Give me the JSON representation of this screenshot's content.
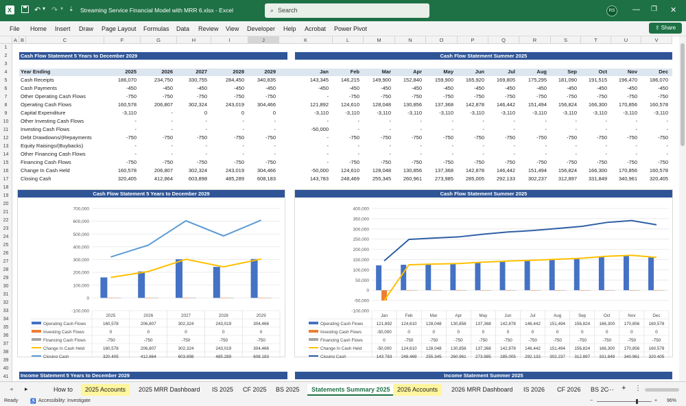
{
  "titlebar": {
    "title": "Streaming Service Financial Model with MRR 6.xlsx  -  Excel",
    "search_placeholder": "Search",
    "user_initials": "RS"
  },
  "menu": [
    "File",
    "Home",
    "Insert",
    "Draw",
    "Page Layout",
    "Formulas",
    "Data",
    "Review",
    "View",
    "Developer",
    "Help",
    "Acrobat",
    "Power Pivot"
  ],
  "share_label": "Share",
  "columns": [
    "A",
    "B",
    "C",
    "F",
    "G",
    "H",
    "I",
    "J",
    "K",
    "L",
    "M",
    "N",
    "O",
    "P",
    "Q",
    "R",
    "S",
    "T",
    "U",
    "V"
  ],
  "rows": [
    "1",
    "2",
    "3",
    "4",
    "5",
    "6",
    "7",
    "8",
    "9",
    "10",
    "11",
    "12",
    "13",
    "14",
    "15",
    "16",
    "17",
    "18",
    "19",
    "20",
    "21",
    "22",
    "23",
    "24",
    "25",
    "26",
    "27",
    "28",
    "29",
    "30",
    "31",
    "32",
    "33",
    "34",
    "35",
    "36",
    "37",
    "38",
    "39",
    "40",
    "41",
    "42"
  ],
  "section1": {
    "left_title": "Cash Flow Statement 5 Years to December 2029",
    "right_title": "Cash Flow Statement Summer 2025",
    "header_label": "Year Ending",
    "years": [
      "2025",
      "2026",
      "2027",
      "2028",
      "2029"
    ],
    "months": [
      "Jan",
      "Feb",
      "Mar",
      "Apr",
      "May",
      "Jun",
      "Jul",
      "Aug",
      "Sep",
      "Oct",
      "Nov",
      "Dec"
    ],
    "rows": [
      {
        "label": "Cash Receipts",
        "years": [
          "186,070",
          "234,750",
          "330,755",
          "284,450",
          "340,835"
        ],
        "months": [
          "143,345",
          "146,215",
          "149,900",
          "152,840",
          "159,900",
          "165,920",
          "169,805",
          "175,295",
          "181,090",
          "191,515",
          "196,470",
          "186,070"
        ]
      },
      {
        "label": "Cash Payments",
        "years": [
          "-450",
          "-450",
          "-450",
          "-450",
          "-450"
        ],
        "months": [
          "-450",
          "-450",
          "-450",
          "-450",
          "-450",
          "-450",
          "-450",
          "-450",
          "-450",
          "-450",
          "-450",
          "-450"
        ]
      },
      {
        "label": "Other Operating Cash Flows",
        "years": [
          "-750",
          "-750",
          "-750",
          "-750",
          "-750"
        ],
        "months": [
          "-",
          "-750",
          "-750",
          "-750",
          "-750",
          "-750",
          "-750",
          "-750",
          "-750",
          "-750",
          "-750",
          "-750"
        ]
      },
      {
        "label": "Operating Cash Flows",
        "years": [
          "160,578",
          "206,807",
          "302,324",
          "243,019",
          "304,466"
        ],
        "months": [
          "121,892",
          "124,610",
          "128,048",
          "130,856",
          "137,368",
          "142,878",
          "146,442",
          "151,494",
          "156,824",
          "166,300",
          "170,856",
          "160,578"
        ]
      },
      {
        "label": "Capital Expenditure",
        "years": [
          "-3,110",
          "-",
          "0",
          "0",
          "0"
        ],
        "months": [
          "-3,110",
          "-3,110",
          "-3,110",
          "-3,110",
          "-3,110",
          "-3,110",
          "-3,110",
          "-3,110",
          "-3,110",
          "-3,110",
          "-3,110",
          "-3,110"
        ]
      },
      {
        "label": "Other Investing Cash Flows",
        "years": [
          "-",
          "-",
          "-",
          "-",
          "-"
        ],
        "months": [
          "-",
          "-",
          "-",
          "-",
          "-",
          "-",
          "-",
          "-",
          "-",
          "-",
          "-",
          "-"
        ]
      },
      {
        "label": "Investing Cash Flows",
        "years": [
          "-",
          "-",
          "-",
          "-",
          "-"
        ],
        "months": [
          "-50,000",
          "-",
          "-",
          "-",
          "-",
          "-",
          "-",
          "-",
          "-",
          "-",
          "-",
          "-"
        ]
      },
      {
        "label": "Debt Drawdowns/(Repayments",
        "years": [
          "-750",
          "-750",
          "-750",
          "-750",
          "-750"
        ],
        "months": [
          "-",
          "-750",
          "-750",
          "-750",
          "-750",
          "-750",
          "-750",
          "-750",
          "-750",
          "-750",
          "-750",
          "-750"
        ]
      },
      {
        "label": "Equity Raisings/(Buybacks)",
        "years": [
          "-",
          "-",
          "-",
          "-",
          "-"
        ],
        "months": [
          "-",
          "-",
          "-",
          "-",
          "-",
          "-",
          "-",
          "-",
          "-",
          "-",
          "-",
          "-"
        ]
      },
      {
        "label": "Other Financing Cash Flows",
        "years": [
          "-",
          "-",
          "-",
          "-",
          "-"
        ],
        "months": [
          "-",
          "-",
          "-",
          "-",
          "-",
          "-",
          "-",
          "-",
          "-",
          "-",
          "-",
          "-"
        ]
      },
      {
        "label": "Financing Cash Flows",
        "years": [
          "-750",
          "-750",
          "-750",
          "-750",
          "-750"
        ],
        "months": [
          "-",
          "-750",
          "-750",
          "-750",
          "-750",
          "-750",
          "-750",
          "-750",
          "-750",
          "-750",
          "-750",
          "-750"
        ]
      },
      {
        "label": "Change In Cash Held",
        "years": [
          "160,578",
          "206,807",
          "302,324",
          "243,019",
          "304,466"
        ],
        "months": [
          "-50,000",
          "124,610",
          "128,048",
          "130,856",
          "137,368",
          "142,878",
          "146,442",
          "151,494",
          "156,824",
          "166,300",
          "170,856",
          "160,578"
        ]
      },
      {
        "label": "Closing Cash",
        "years": [
          "320,405",
          "412,864",
          "603,898",
          "485,289",
          "608,183"
        ],
        "months": [
          "143,783",
          "248,469",
          "255,345",
          "260,961",
          "273,985",
          "285,005",
          "292,133",
          "302,237",
          "312,897",
          "331,849",
          "340,961",
          "320,405"
        ]
      }
    ]
  },
  "chart_data": [
    {
      "type": "bar",
      "title": "Cash Flow Statement 5 Years to December 2029",
      "categories": [
        "2025",
        "2026",
        "2027",
        "2028",
        "2029"
      ],
      "ylim": [
        -100000,
        700000
      ],
      "yticks": [
        "700,000",
        "600,000",
        "500,000",
        "400,000",
        "300,000",
        "200,000",
        "100,000",
        "0",
        "-100,000"
      ],
      "series": [
        {
          "name": "Operating Cash Flows",
          "kind": "bar",
          "color": "#4472c4",
          "values": [
            160578,
            206807,
            302324,
            243019,
            304466
          ],
          "labels": [
            "160,578",
            "206,807",
            "302,324",
            "243,019",
            "304,466"
          ]
        },
        {
          "name": "Investing Cash Flows",
          "kind": "bar",
          "color": "#ed7d31",
          "values": [
            0,
            0,
            0,
            0,
            0
          ],
          "labels": [
            "0",
            "0",
            "0",
            "0",
            "0"
          ]
        },
        {
          "name": "Financing Cash Flows",
          "kind": "bar",
          "color": "#a5a5a5",
          "values": [
            -750,
            -750,
            -750,
            -750,
            -750
          ],
          "labels": [
            "-750",
            "-750",
            "-750",
            "-750",
            "-750"
          ]
        },
        {
          "name": "Change In Cash Held",
          "kind": "line",
          "color": "#ffc000",
          "values": [
            160578,
            206807,
            302324,
            243019,
            304466
          ],
          "labels": [
            "160,578",
            "206,807",
            "302,324",
            "243,019",
            "304,466"
          ]
        },
        {
          "name": "Closing Cash",
          "kind": "line",
          "color": "#5b9bd5",
          "values": [
            320405,
            412864,
            603898,
            485289,
            608183
          ],
          "labels": [
            "320,405",
            "412,864",
            "603,898",
            "485,289",
            "608,183"
          ]
        }
      ]
    },
    {
      "type": "bar",
      "title": "Cash Flow Statement Summer 2025",
      "categories": [
        "Jan",
        "Feb",
        "Mar",
        "Apr",
        "May",
        "Jun",
        "Jul",
        "Aug",
        "Sep",
        "Oct",
        "Nov",
        "Dec"
      ],
      "ylim": [
        -100000,
        400000
      ],
      "yticks": [
        "400,000",
        "350,000",
        "300,000",
        "250,000",
        "200,000",
        "150,000",
        "100,000",
        "50,000",
        "0",
        "-50,000",
        "-100,000"
      ],
      "series": [
        {
          "name": "Operating Cash Flows",
          "kind": "bar",
          "color": "#4472c4",
          "values": [
            121892,
            124610,
            128048,
            130856,
            137368,
            142878,
            146442,
            151494,
            156824,
            166300,
            170856,
            160578
          ],
          "labels": [
            "121,892",
            "124,610",
            "128,048",
            "130,856",
            "137,368",
            "142,878",
            "146,442",
            "151,494",
            "156,824",
            "166,300",
            "170,856",
            "160,578"
          ]
        },
        {
          "name": "Investing Cash Flows",
          "kind": "bar",
          "color": "#ed7d31",
          "values": [
            -50000,
            0,
            0,
            0,
            0,
            0,
            0,
            0,
            0,
            0,
            0,
            0
          ],
          "labels": [
            "-50,000",
            "0",
            "0",
            "0",
            "0",
            "0",
            "0",
            "0",
            "0",
            "0",
            "0",
            "0"
          ]
        },
        {
          "name": "Financing Cash Flows",
          "kind": "bar",
          "color": "#a5a5a5",
          "values": [
            0,
            -750,
            -750,
            -750,
            -750,
            -750,
            -750,
            -750,
            -750,
            -750,
            -750,
            -750
          ],
          "labels": [
            "0",
            "-750",
            "-750",
            "-750",
            "-750",
            "-750",
            "-750",
            "-750",
            "-750",
            "-750",
            "-750",
            "-750"
          ]
        },
        {
          "name": "Change In Cash Held",
          "kind": "line",
          "color": "#ffc000",
          "values": [
            -50000,
            124610,
            128048,
            130856,
            137368,
            142878,
            146442,
            151494,
            156824,
            166300,
            170856,
            160578
          ],
          "labels": [
            "-50,000",
            "124,610",
            "128,048",
            "130,856",
            "137,368",
            "142,878",
            "146,442",
            "151,494",
            "156,824",
            "166,300",
            "170,856",
            "160,578"
          ]
        },
        {
          "name": "Closing Cash",
          "kind": "line",
          "color": "#2e5fa5",
          "values": [
            143783,
            248469,
            255345,
            260961,
            273985,
            285005,
            292133,
            302237,
            312897,
            331849,
            340961,
            320405
          ],
          "labels": [
            "143,783",
            "248,469",
            "255,345",
            "260,961",
            "273,985",
            "285,005",
            "292,133",
            "302,237",
            "312,897",
            "331,849",
            "340,961",
            "320,405"
          ]
        }
      ]
    }
  ],
  "section2": {
    "left_title": "Income Statement 5 Years to December 2029",
    "right_title": "Income Statement Summer 2025"
  },
  "tabs": [
    {
      "label": "How to",
      "style": "normal"
    },
    {
      "label": "2025 Accounts",
      "style": "yellow"
    },
    {
      "label": "2025 MRR Dashboard",
      "style": "normal"
    },
    {
      "label": "IS 2025",
      "style": "normal"
    },
    {
      "label": "CF 2025",
      "style": "normal"
    },
    {
      "label": "BS 2025",
      "style": "normal"
    },
    {
      "label": "Statements Summary 2025",
      "style": "active"
    },
    {
      "label": "2026 Accounts",
      "style": "yellow"
    },
    {
      "label": "2026 MRR Dashboard",
      "style": "normal"
    },
    {
      "label": "IS 2026",
      "style": "normal"
    },
    {
      "label": "CF 2026",
      "style": "normal"
    },
    {
      "label": "BS 2C",
      "style": "normal"
    }
  ],
  "status": {
    "ready": "Ready",
    "accessibility": "Accessibility: Investigate",
    "zoom": "96%"
  }
}
